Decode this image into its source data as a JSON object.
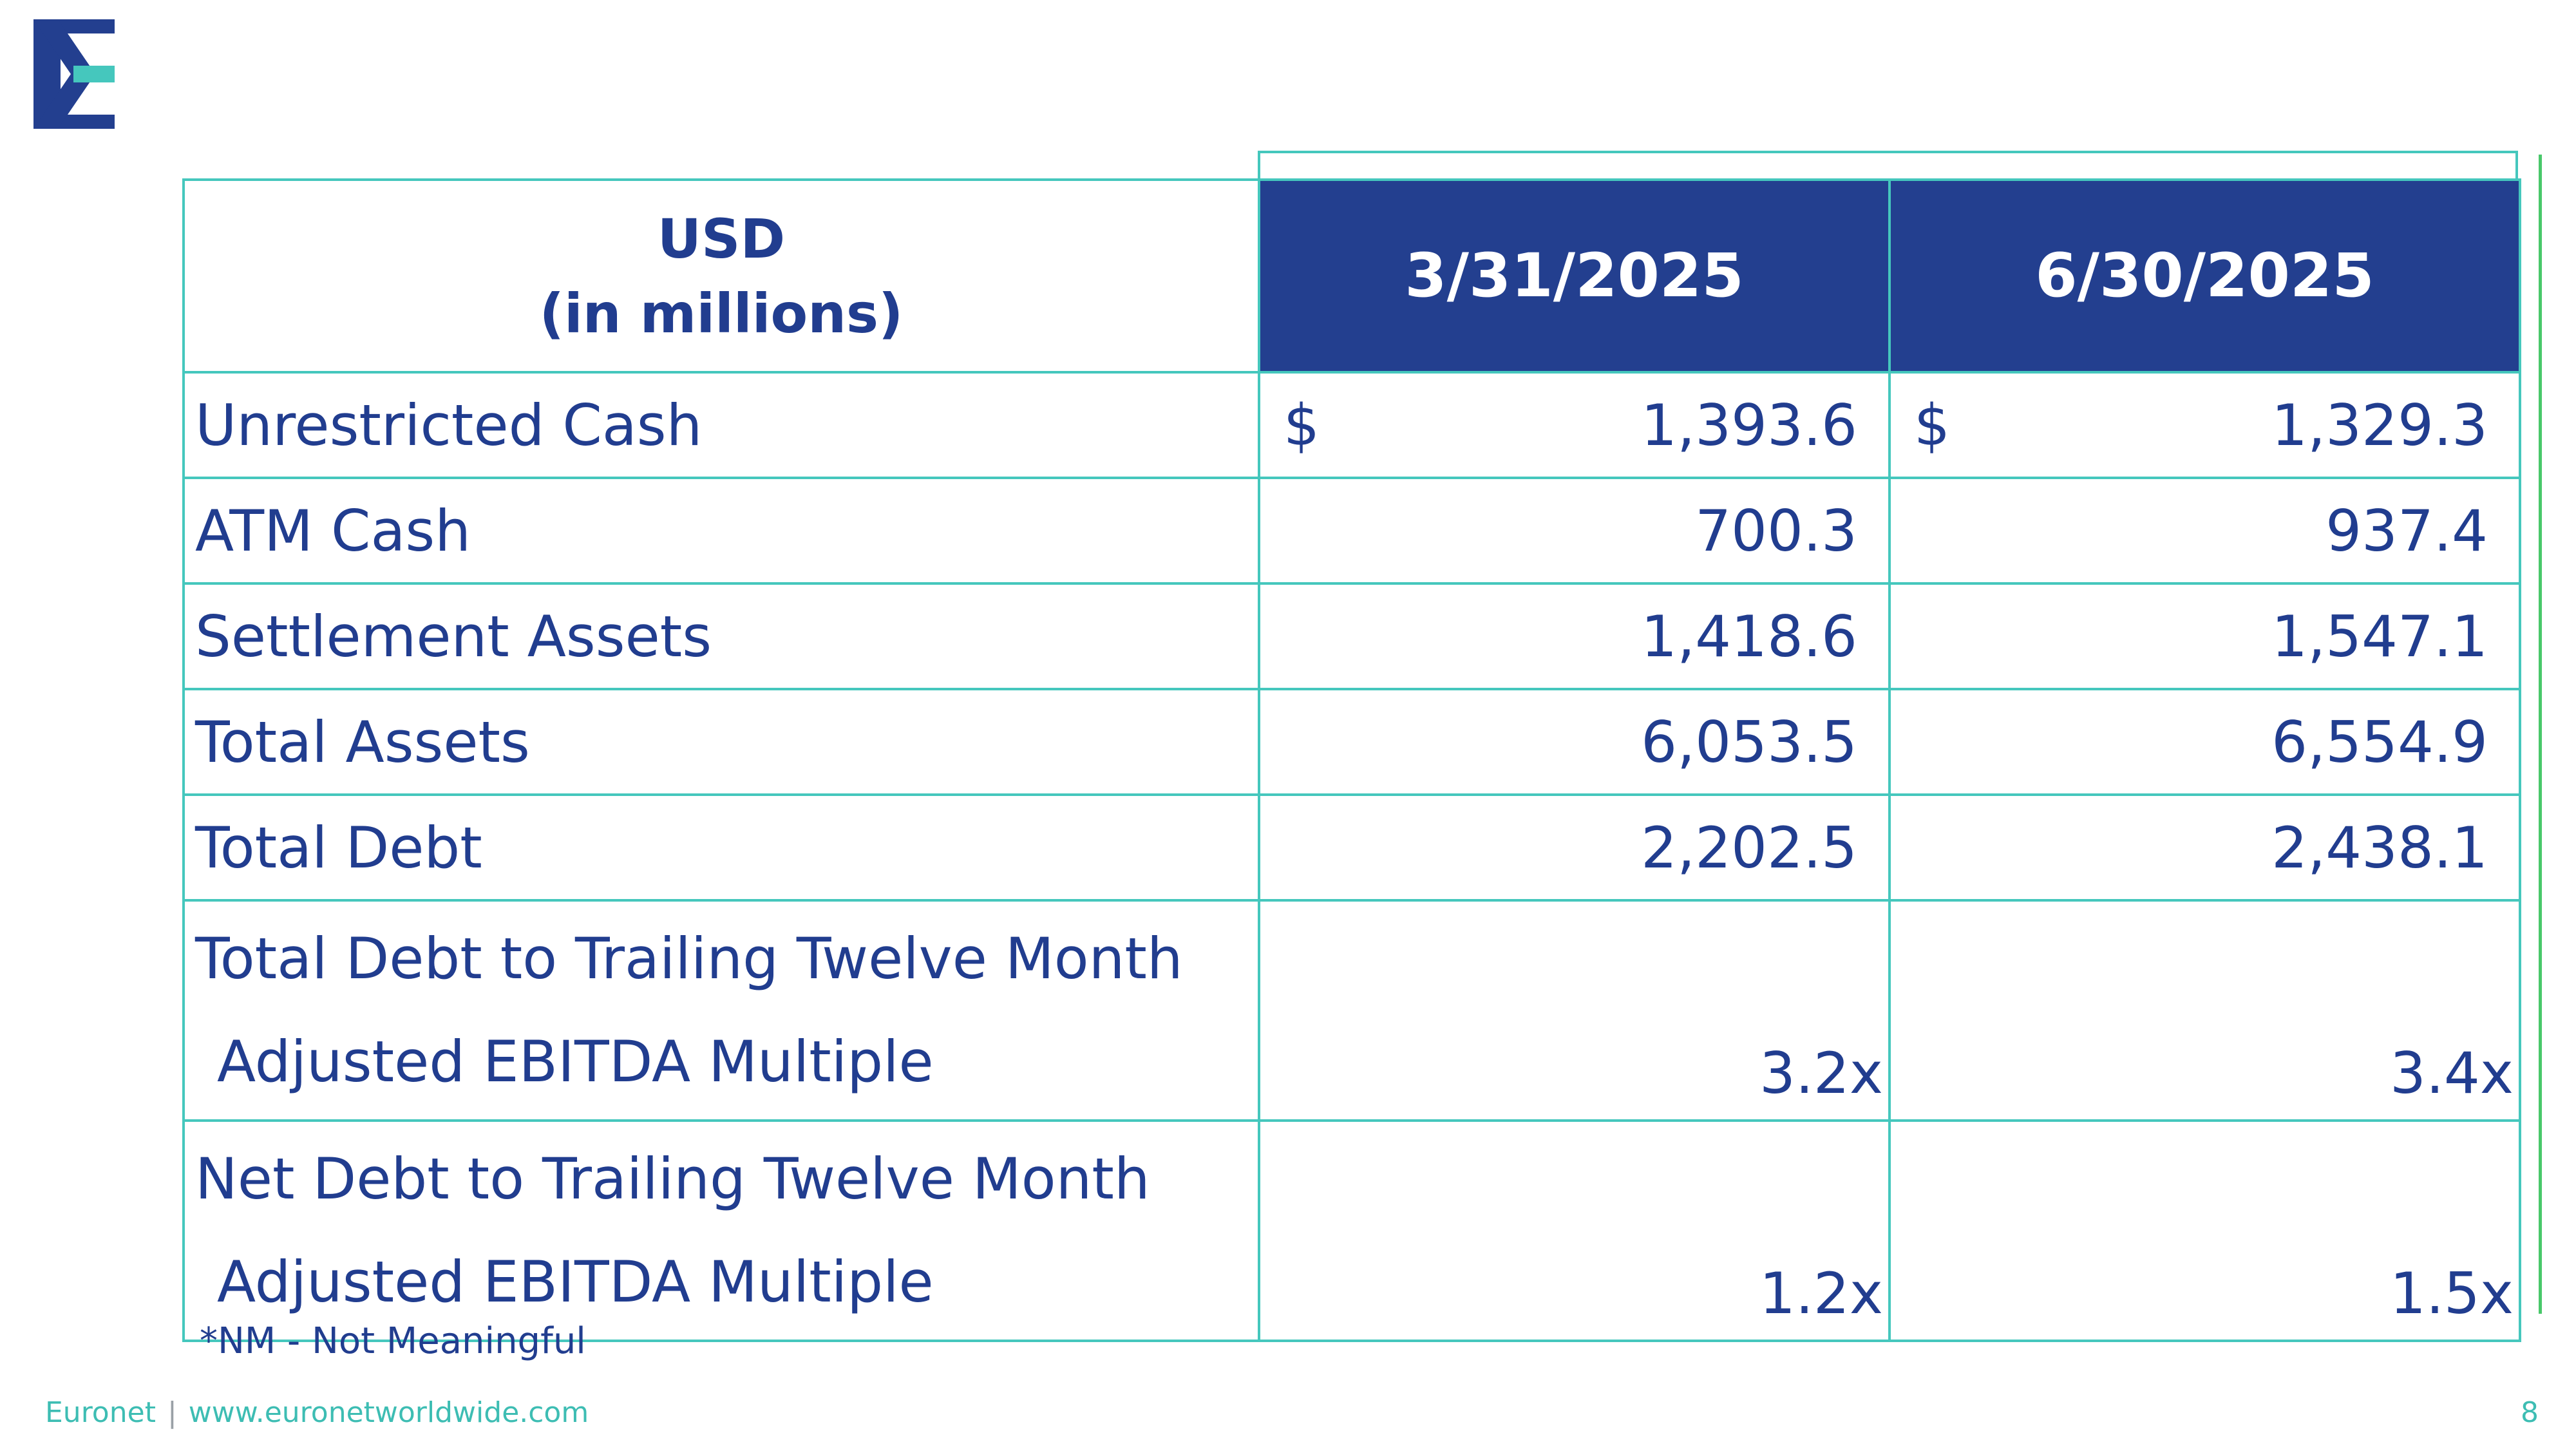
{
  "table": {
    "header": {
      "usd": "USD",
      "in_millions": "(in millions)",
      "col1": "3/31/2025",
      "col2": "6/30/2025"
    },
    "rows": [
      {
        "label": "Unrestricted Cash",
        "cur1": "$",
        "v1": "1,393.6",
        "cur2": "$",
        "v2": "1,329.3"
      },
      {
        "label": "ATM Cash",
        "v1": "700.3",
        "v2": "937.4"
      },
      {
        "label": "Settlement Assets",
        "v1": "1,418.6",
        "v2": "1,547.1"
      },
      {
        "label": "Total Assets",
        "v1": "6,053.5",
        "v2": "6,554.9"
      },
      {
        "label": "Total Debt",
        "v1": "2,202.5",
        "v2": "2,438.1"
      },
      {
        "label_line1": "Total Debt to Trailing Twelve Month",
        "label_line2": "Adjusted EBITDA Multiple",
        "v1": "3.2x",
        "v2": "3.4x"
      },
      {
        "label_line1": "Net Debt to Trailing Twelve Month",
        "label_line2": "Adjusted EBITDA Multiple",
        "v1": "1.2x",
        "v2": "1.5x"
      }
    ]
  },
  "footnote": "*NM - Not Meaningful",
  "footer": {
    "company": "Euronet",
    "separator": "|",
    "website": "www.euronetworldwide.com",
    "page_number": "8"
  },
  "colors": {
    "navy": "#233f8f",
    "teal": "#45c7bd",
    "green": "#49c86a"
  },
  "icons": {
    "logo": "euronet-e-logo"
  }
}
